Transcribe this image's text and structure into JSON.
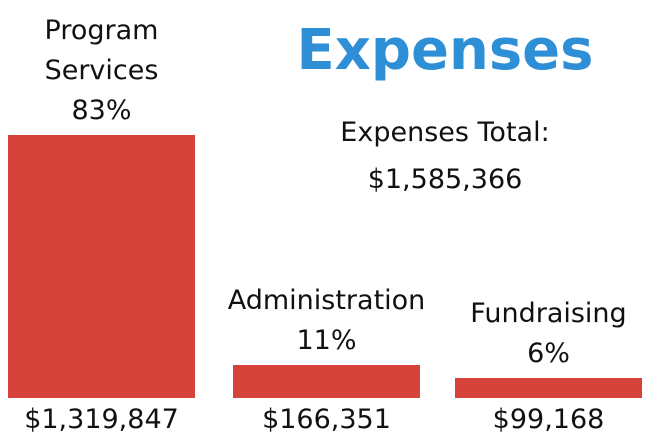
{
  "chart_data": {
    "type": "bar",
    "title": "Expenses",
    "subtitle": "Expenses Total:",
    "total_label": "$1,585,366",
    "categories": [
      "Program Services",
      "Administration",
      "Fundraising"
    ],
    "values": [
      1319847,
      166351,
      99168
    ],
    "value_labels": [
      "$1,319,847",
      "$166,351",
      "$99,168"
    ],
    "share_labels": [
      "83%",
      "11%",
      "6%"
    ],
    "color": "#d5433a",
    "title_color": "#2e8fd6"
  }
}
